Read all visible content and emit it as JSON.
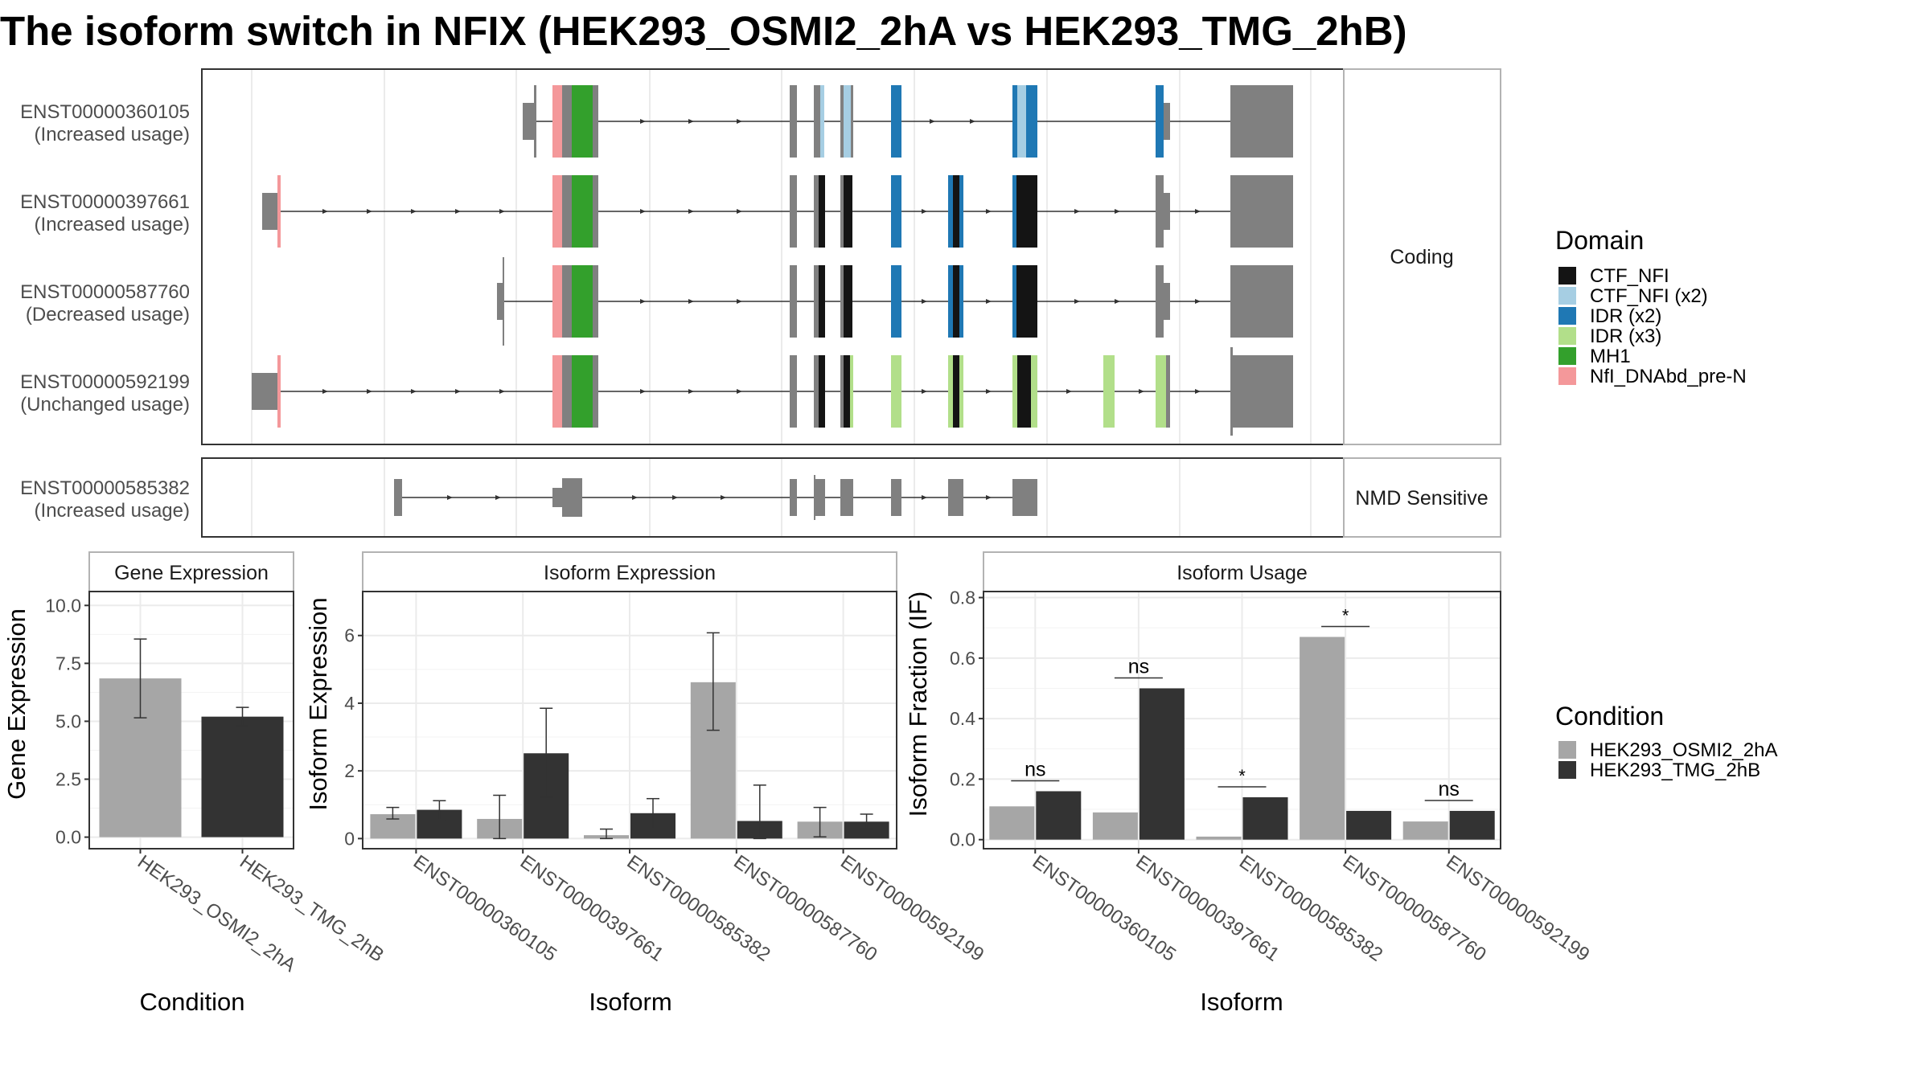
{
  "title": "The isoform switch in NFIX (HEK293_OSMI2_2hA vs HEK293_TMG_2hB)",
  "colors": {
    "exon": "#808080",
    "strip_bg": "#ffffff",
    "panel_border": "#333333",
    "grid": "#ebebeb",
    "cond_a": "#a6a6a6",
    "cond_b": "#333333"
  },
  "isoforms": [
    {
      "id": "ENST00000360105",
      "usage": "(Increased usage)",
      "group": "Coding"
    },
    {
      "id": "ENST00000397661",
      "usage": "(Increased usage)",
      "group": "Coding"
    },
    {
      "id": "ENST00000587760",
      "usage": "(Decreased usage)",
      "group": "Coding"
    },
    {
      "id": "ENST00000592199",
      "usage": "(Unchanged usage)",
      "group": "Coding"
    },
    {
      "id": "ENST00000585382",
      "usage": "(Increased usage)",
      "group": "NMD Sensitive"
    }
  ],
  "groups": [
    "Coding",
    "NMD Sensitive"
  ],
  "domain_legend": {
    "title": "Domain",
    "items": [
      {
        "label": "CTF_NFI",
        "color": "#141414"
      },
      {
        "label": "CTF_NFI (x2)",
        "color": "#a6cee3"
      },
      {
        "label": "IDR (x2)",
        "color": "#1f78b4"
      },
      {
        "label": "IDR (x3)",
        "color": "#b2df8a"
      },
      {
        "label": "MH1",
        "color": "#33a02c"
      },
      {
        "label": "NfI_DNAbd_pre-N",
        "color": "#f4989a"
      }
    ]
  },
  "condition_legend": {
    "title": "Condition",
    "items": [
      {
        "label": "HEK293_OSMI2_2hA",
        "color": "#a6a6a6"
      },
      {
        "label": "HEK293_TMG_2hB",
        "color": "#333333"
      }
    ]
  },
  "chart_data": [
    {
      "type": "bar",
      "panel": "Gene Expression",
      "xlabel": "Condition",
      "ylabel": "Gene Expression",
      "categories": [
        "HEK293_OSMI2_2hA",
        "HEK293_TMG_2hB"
      ],
      "values": [
        6.85,
        5.2
      ],
      "ci_low": [
        5.15,
        4.8
      ],
      "ci_high": [
        8.55,
        5.6
      ],
      "ylim": [
        -0.5,
        10.6
      ],
      "yticks": [
        0.0,
        2.5,
        5.0,
        7.5,
        10.0
      ],
      "ytick_labels": [
        "0.0",
        "2.5",
        "5.0",
        "7.5",
        "10.0"
      ]
    },
    {
      "type": "bar",
      "panel": "Isoform Expression",
      "xlabel": "Isoform",
      "ylabel": "Isoform Expression",
      "categories": [
        "ENST00000360105",
        "ENST00000397661",
        "ENST00000585382",
        "ENST00000587760",
        "ENST00000592199"
      ],
      "series": [
        {
          "name": "HEK293_OSMI2_2hA",
          "values": [
            0.72,
            0.58,
            0.1,
            4.62,
            0.5
          ],
          "ci_low": [
            0.58,
            0.0,
            0.0,
            3.2,
            0.05
          ],
          "ci_high": [
            0.92,
            1.28,
            0.28,
            6.08,
            0.92
          ]
        },
        {
          "name": "HEK293_TMG_2hB",
          "values": [
            0.85,
            2.52,
            0.75,
            0.52,
            0.5
          ],
          "ci_low": [
            0.55,
            1.22,
            0.3,
            0.0,
            0.28
          ],
          "ci_high": [
            1.12,
            3.85,
            1.18,
            1.58,
            0.72
          ]
        }
      ],
      "ylim": [
        -0.3,
        7.3
      ],
      "yticks": [
        0,
        2,
        4,
        6
      ],
      "ytick_labels": [
        "0",
        "2",
        "4",
        "6"
      ]
    },
    {
      "type": "bar",
      "panel": "Isoform Usage",
      "xlabel": "Isoform",
      "ylabel": "Isoform Fraction (IF)",
      "categories": [
        "ENST00000360105",
        "ENST00000397661",
        "ENST00000585382",
        "ENST00000587760",
        "ENST00000592199"
      ],
      "series": [
        {
          "name": "HEK293_OSMI2_2hA",
          "values": [
            0.11,
            0.09,
            0.01,
            0.67,
            0.06
          ]
        },
        {
          "name": "HEK293_TMG_2hB",
          "values": [
            0.16,
            0.5,
            0.14,
            0.095,
            0.095
          ]
        }
      ],
      "significance": [
        "ns",
        "ns",
        "*",
        "*",
        "ns"
      ],
      "ylim": [
        -0.03,
        0.82
      ],
      "yticks": [
        0.0,
        0.2,
        0.4,
        0.6,
        0.8
      ],
      "ytick_labels": [
        "0.0",
        "0.2",
        "0.4",
        "0.6",
        "0.8"
      ]
    }
  ]
}
